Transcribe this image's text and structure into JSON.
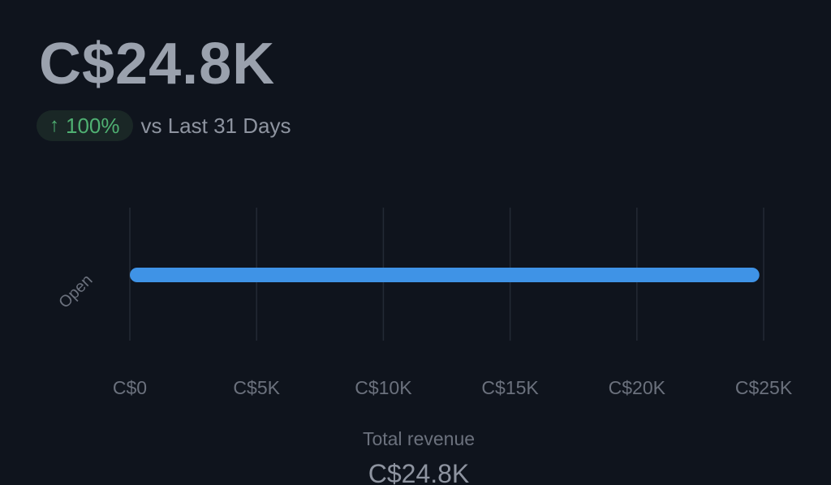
{
  "kpi": {
    "value": "C$24.8K",
    "change_arrow": "↑",
    "change_percent": "100%",
    "comparison": "vs Last 31 Days"
  },
  "summary": {
    "label": "Total revenue",
    "value": "C$24.8K"
  },
  "colors": {
    "bar": "#3f93e6",
    "positive": "#4fb072",
    "grid": "#232a35",
    "tick_text": "#6b717d"
  },
  "chart_data": {
    "type": "bar",
    "orientation": "horizontal",
    "categories": [
      "Open"
    ],
    "series": [
      {
        "values": [
          24800
        ]
      }
    ],
    "x_ticks": [
      {
        "value": 0,
        "label": "C$0"
      },
      {
        "value": 5000,
        "label": "C$5K"
      },
      {
        "value": 10000,
        "label": "C$10K"
      },
      {
        "value": 15000,
        "label": "C$15K"
      },
      {
        "value": 20000,
        "label": "C$20K"
      },
      {
        "value": 25000,
        "label": "C$25K"
      }
    ],
    "xlim": [
      0,
      25000
    ],
    "grid": true,
    "legend": "none"
  }
}
